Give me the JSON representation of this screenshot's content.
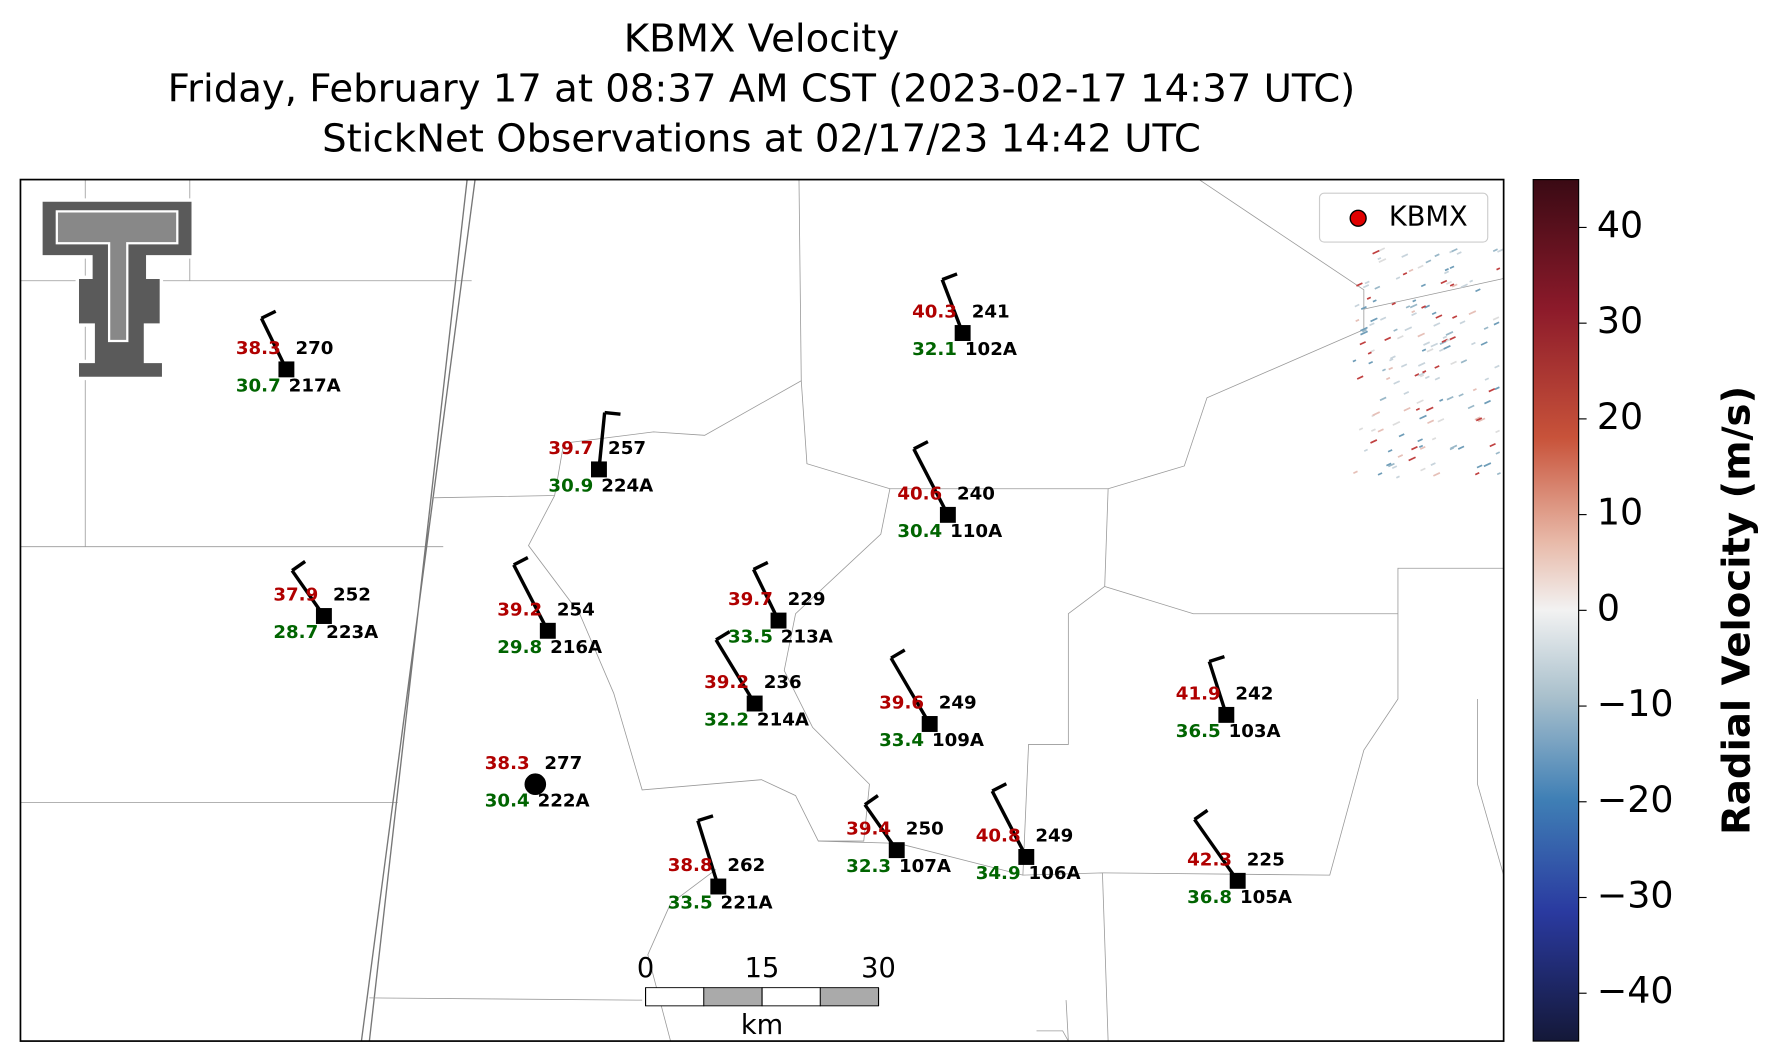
{
  "title": {
    "line1": "KBMX Velocity",
    "line2": "Friday, February 17 at 08:37 AM CST (2023-02-17 14:37 UTC)",
    "line3": "StickNet Observations at 02/17/23 14:42 UTC"
  },
  "legend": {
    "label": "KBMX",
    "color": "#e00000"
  },
  "colorbar": {
    "label": "Radial Velocity (m/s)",
    "lim": [
      -45,
      45
    ],
    "ticks": [
      40,
      30,
      20,
      10,
      0,
      {
        "value": -10,
        "label": "−10"
      },
      {
        "value": -20,
        "label": "−20"
      },
      {
        "value": -30,
        "label": "−30"
      },
      {
        "value": -40,
        "label": "−40"
      }
    ]
  },
  "scalebar": {
    "ticks": [
      0,
      15,
      30
    ],
    "unit": "km"
  },
  "stations": [
    {
      "id": "217A",
      "temp": 38.3,
      "dewpoint": 30.7,
      "number": 270
    },
    {
      "id": "102A",
      "temp": 40.3,
      "dewpoint": 32.1,
      "number": 241
    },
    {
      "id": "224A",
      "temp": 39.7,
      "dewpoint": 30.9,
      "number": 257
    },
    {
      "id": "110A",
      "temp": 40.6,
      "dewpoint": 30.4,
      "number": 240
    },
    {
      "id": "223A",
      "temp": 37.9,
      "dewpoint": 28.7,
      "number": 252
    },
    {
      "id": "216A",
      "temp": 39.2,
      "dewpoint": 29.8,
      "number": 254
    },
    {
      "id": "213A",
      "temp": 39.7,
      "dewpoint": 33.5,
      "number": 229
    },
    {
      "id": "214A",
      "temp": 39.2,
      "dewpoint": 32.2,
      "number": 236
    },
    {
      "id": "109A",
      "temp": 39.6,
      "dewpoint": 33.4,
      "number": 249
    },
    {
      "id": "103A",
      "temp": 41.9,
      "dewpoint": 36.5,
      "number": 242
    },
    {
      "id": "222A",
      "temp": 38.3,
      "dewpoint": 30.4,
      "number": 277
    },
    {
      "id": "107A",
      "temp": 39.4,
      "dewpoint": 32.3,
      "number": 250
    },
    {
      "id": "106A",
      "temp": 40.8,
      "dewpoint": 34.9,
      "number": 249
    },
    {
      "id": "221A",
      "temp": 38.8,
      "dewpoint": 33.5,
      "number": 262
    },
    {
      "id": "105A",
      "temp": 42.3,
      "dewpoint": 36.8,
      "number": 225
    }
  ]
}
